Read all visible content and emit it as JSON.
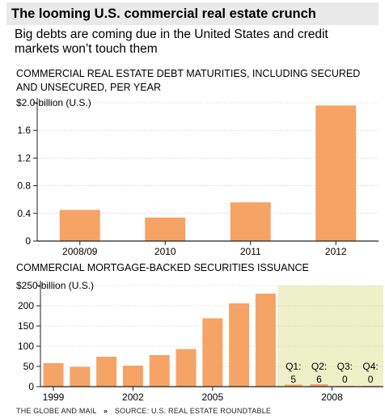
{
  "title": "The looming U.S. commercial real estate crunch",
  "subtitle": "Big debts are coming due in the United States and credit markets won’t touch them",
  "footer": {
    "publisher": "THE GLOBE AND MAIL",
    "separator": "»",
    "source": "SOURCE: U.S. REAL ESTATE ROUNDTABLE"
  },
  "colors": {
    "bar": "#f6a366",
    "shade": "#eef1c8",
    "axis": "#222222",
    "grid": "#aaaaaa",
    "title_bg": "#e9e9e9"
  },
  "chart_data": [
    {
      "type": "bar",
      "title_lines": [
        "COMMERCIAL REAL ESTATE DEBT MATURITIES, INCLUDING SECURED",
        "AND UNSECURED, PER YEAR"
      ],
      "categories": [
        "2008/09",
        "2010",
        "2011",
        "2012"
      ],
      "values": [
        0.45,
        0.34,
        0.56,
        1.96
      ],
      "ylim": [
        0,
        2.0
      ],
      "yticks": [
        0,
        0.4,
        0.8,
        1.2,
        1.6,
        2.0
      ],
      "ytick_labels": [
        "0",
        "0.4",
        "0.8",
        "1.2",
        "1.6",
        "$2.0-billion (U.S.)"
      ],
      "grid": true
    },
    {
      "type": "bar",
      "title": "COMMERCIAL MORTGAGE-BACKED SECURITIES ISSUANCE",
      "categories": [
        "1999",
        "2000",
        "2001",
        "2002",
        "2003",
        "2004",
        "2005",
        "2006",
        "2007",
        "Q1",
        "Q2",
        "Q3",
        "Q4"
      ],
      "values": [
        58,
        49,
        74,
        52,
        78,
        93,
        169,
        206,
        230,
        5,
        6,
        0,
        0
      ],
      "xtick_labels": [
        "1999",
        "2002",
        "2005",
        "2008"
      ],
      "quarter_labels": [
        {
          "label": "Q1:",
          "value": "5"
        },
        {
          "label": "Q2:",
          "value": "6"
        },
        {
          "label": "Q3:",
          "value": "0"
        },
        {
          "label": "Q4:",
          "value": "0"
        }
      ],
      "ylim": [
        0,
        250
      ],
      "yticks": [
        0,
        50,
        100,
        150,
        200,
        250
      ],
      "ytick_labels": [
        "0",
        "50",
        "100",
        "150",
        "200",
        "$250-billion (U.S.)"
      ],
      "grid": true,
      "highlight": "2008"
    }
  ]
}
